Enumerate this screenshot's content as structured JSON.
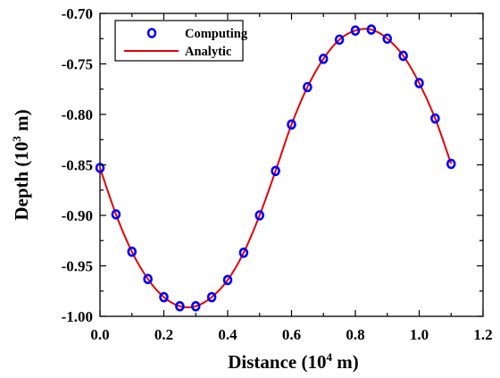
{
  "chart_data": {
    "type": "line",
    "xlabel": "Distance (10",
    "xlabel_exp": "4",
    "xlabel_unit": " m)",
    "ylabel": "Depth (10",
    "ylabel_exp": "3",
    "ylabel_unit": " m)",
    "xlim": [
      0.0,
      1.2
    ],
    "ylim": [
      -1.0,
      -0.7
    ],
    "xticks": [
      "0.0",
      "0.2",
      "0.4",
      "0.6",
      "0.8",
      "1.0",
      "1.2"
    ],
    "yticks": [
      "-0.70",
      "-0.75",
      "-0.80",
      "-0.85",
      "-0.90",
      "-0.95",
      "-1.00"
    ],
    "grid": false,
    "legend_position": "top-left",
    "series": [
      {
        "name": "Computing",
        "style": "markers",
        "marker": "circle",
        "color": "#0000ff",
        "x": [
          0.0,
          0.05,
          0.1,
          0.15,
          0.2,
          0.25,
          0.3,
          0.35,
          0.4,
          0.45,
          0.5,
          0.55,
          0.6,
          0.65,
          0.7,
          0.75,
          0.8,
          0.85,
          0.9,
          0.95,
          1.0,
          1.05,
          1.1
        ],
        "y": [
          -0.853,
          -0.899,
          -0.936,
          -0.963,
          -0.981,
          -0.99,
          -0.99,
          -0.981,
          -0.964,
          -0.937,
          -0.9,
          -0.856,
          -0.81,
          -0.773,
          -0.745,
          -0.726,
          -0.717,
          -0.716,
          -0.725,
          -0.742,
          -0.769,
          -0.804,
          -0.849
        ]
      },
      {
        "name": "Analytic",
        "style": "line",
        "color": "#e60000",
        "x": [
          0.0,
          0.05,
          0.1,
          0.15,
          0.2,
          0.25,
          0.3,
          0.35,
          0.4,
          0.45,
          0.5,
          0.55,
          0.6,
          0.65,
          0.7,
          0.75,
          0.8,
          0.85,
          0.9,
          0.95,
          1.0,
          1.05,
          1.1
        ],
        "y": [
          -0.853,
          -0.899,
          -0.936,
          -0.963,
          -0.981,
          -0.99,
          -0.99,
          -0.981,
          -0.964,
          -0.937,
          -0.9,
          -0.856,
          -0.81,
          -0.773,
          -0.745,
          -0.726,
          -0.717,
          -0.716,
          -0.725,
          -0.742,
          -0.769,
          -0.804,
          -0.849
        ]
      }
    ]
  }
}
